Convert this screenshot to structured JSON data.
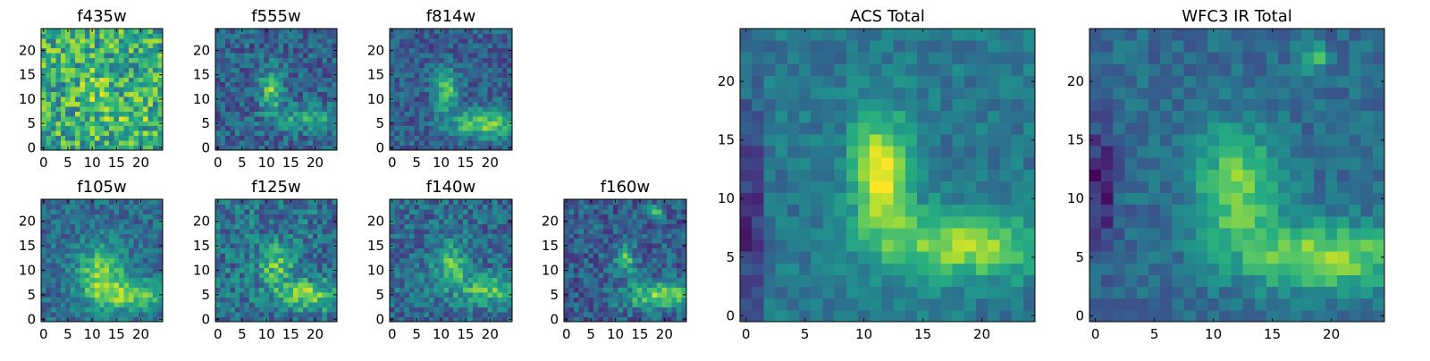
{
  "figure": {
    "description_colormap": "viridis",
    "colors": [
      "#440154",
      "#3b528b",
      "#21918c",
      "#5ec962",
      "#fde725"
    ]
  },
  "chart_data": [
    {
      "type": "heatmap",
      "title": "f435w",
      "grid": false,
      "xlim": [
        -0.5,
        24.5
      ],
      "ylim": [
        -0.5,
        24.5
      ],
      "xticks": [
        0,
        5,
        10,
        15,
        20
      ],
      "yticks": [
        0,
        5,
        10,
        15,
        20
      ],
      "nx": 25,
      "ny": 25,
      "noise": 0.55,
      "blobs": [
        {
          "x": 11,
          "y": 12,
          "sx": 2.5,
          "sy": 3.5,
          "amp": 0.12
        },
        {
          "x": 18,
          "y": 6,
          "sx": 5,
          "sy": 2,
          "amp": 0.08
        }
      ],
      "base": 0.62,
      "seed": 11
    },
    {
      "type": "heatmap",
      "title": "f555w",
      "grid": false,
      "xlim": [
        -0.5,
        24.5
      ],
      "ylim": [
        -0.5,
        24.5
      ],
      "xticks": [
        0,
        5,
        10,
        15,
        20
      ],
      "yticks": [
        0,
        5,
        10,
        15,
        20
      ],
      "nx": 25,
      "ny": 25,
      "noise": 0.35,
      "blobs": [
        {
          "x": 11,
          "y": 12,
          "sx": 1.6,
          "sy": 3.0,
          "amp": 0.45
        },
        {
          "x": 19,
          "y": 6,
          "sx": 5,
          "sy": 1.8,
          "amp": 0.3
        }
      ],
      "base": 0.32,
      "seed": 23
    },
    {
      "type": "heatmap",
      "title": "f814w",
      "grid": false,
      "xlim": [
        -0.5,
        24.5
      ],
      "ylim": [
        -0.5,
        24.5
      ],
      "xticks": [
        0,
        5,
        10,
        15,
        20
      ],
      "yticks": [
        0,
        5,
        10,
        15,
        20
      ],
      "nx": 25,
      "ny": 25,
      "noise": 0.3,
      "blobs": [
        {
          "x": 11,
          "y": 12,
          "sx": 1.7,
          "sy": 3.0,
          "amp": 0.45
        },
        {
          "x": 19,
          "y": 5,
          "sx": 5,
          "sy": 2,
          "amp": 0.5
        }
      ],
      "base": 0.3,
      "seed": 37
    },
    {
      "type": "heatmap",
      "title": "f105w",
      "grid": false,
      "xlim": [
        -0.5,
        24.5
      ],
      "ylim": [
        -0.5,
        24.5
      ],
      "xticks": [
        0,
        5,
        10,
        15,
        20
      ],
      "yticks": [
        0,
        5,
        10,
        15,
        20
      ],
      "nx": 25,
      "ny": 25,
      "noise": 0.3,
      "blobs": [
        {
          "x": 12,
          "y": 9,
          "sx": 3.5,
          "sy": 4.5,
          "amp": 0.45
        },
        {
          "x": 19,
          "y": 5,
          "sx": 5,
          "sy": 2,
          "amp": 0.4
        }
      ],
      "base": 0.35,
      "seed": 41
    },
    {
      "type": "heatmap",
      "title": "f125w",
      "grid": false,
      "xlim": [
        -0.5,
        24.5
      ],
      "ylim": [
        -0.5,
        24.5
      ],
      "xticks": [
        0,
        5,
        10,
        15,
        20
      ],
      "yticks": [
        0,
        5,
        10,
        15,
        20
      ],
      "nx": 25,
      "ny": 25,
      "noise": 0.4,
      "blobs": [
        {
          "x": 12,
          "y": 11,
          "sx": 2.5,
          "sy": 3,
          "amp": 0.35
        },
        {
          "x": 19,
          "y": 5,
          "sx": 5,
          "sy": 2,
          "amp": 0.4
        }
      ],
      "base": 0.38,
      "seed": 53
    },
    {
      "type": "heatmap",
      "title": "f140w",
      "grid": false,
      "xlim": [
        -0.5,
        24.5
      ],
      "ylim": [
        -0.5,
        24.5
      ],
      "xticks": [
        0,
        5,
        10,
        15,
        20
      ],
      "yticks": [
        0,
        5,
        10,
        15,
        20
      ],
      "nx": 25,
      "ny": 25,
      "noise": 0.35,
      "blobs": [
        {
          "x": 12,
          "y": 11,
          "sx": 2.5,
          "sy": 3.5,
          "amp": 0.35
        },
        {
          "x": 20,
          "y": 6,
          "sx": 4,
          "sy": 2,
          "amp": 0.4
        }
      ],
      "base": 0.35,
      "seed": 67
    },
    {
      "type": "heatmap",
      "title": "f160w",
      "grid": false,
      "xlim": [
        -0.5,
        24.5
      ],
      "ylim": [
        -0.5,
        24.5
      ],
      "xticks": [
        0,
        5,
        10,
        15,
        20
      ],
      "yticks": [
        0,
        5,
        10,
        15,
        20
      ],
      "nx": 25,
      "ny": 25,
      "noise": 0.35,
      "blobs": [
        {
          "x": 12,
          "y": 12,
          "sx": 1.5,
          "sy": 2.0,
          "amp": 0.4
        },
        {
          "x": 19,
          "y": 5,
          "sx": 5,
          "sy": 2,
          "amp": 0.5
        },
        {
          "x": 18,
          "y": 22,
          "sx": 0.8,
          "sy": 0.8,
          "amp": 0.5
        }
      ],
      "base": 0.3,
      "seed": 79
    },
    {
      "type": "heatmap",
      "title": "ACS Total",
      "grid": false,
      "xlim": [
        -0.5,
        24.5
      ],
      "ylim": [
        -0.5,
        24.5
      ],
      "xticks": [
        0,
        5,
        10,
        15,
        20
      ],
      "yticks": [
        0,
        5,
        10,
        15,
        20
      ],
      "nx": 25,
      "ny": 25,
      "noise": 0.2,
      "blobs": [
        {
          "x": 11.5,
          "y": 12,
          "sx": 1.8,
          "sy": 3.5,
          "amp": 0.6
        },
        {
          "x": 18.5,
          "y": 6,
          "sx": 5,
          "sy": 2,
          "amp": 0.45
        },
        {
          "x": 0.5,
          "y": 8,
          "sx": 0.6,
          "sy": 7,
          "amp": -0.35
        }
      ],
      "base": 0.4,
      "seed": 89
    },
    {
      "type": "heatmap",
      "title": "WFC3 IR Total",
      "grid": false,
      "xlim": [
        -0.5,
        24.5
      ],
      "ylim": [
        -0.5,
        24.5
      ],
      "xticks": [
        0,
        5,
        10,
        15,
        20
      ],
      "yticks": [
        0,
        5,
        10,
        15,
        20
      ],
      "nx": 25,
      "ny": 25,
      "noise": 0.2,
      "blobs": [
        {
          "x": 12,
          "y": 11,
          "sx": 2.5,
          "sy": 3.5,
          "amp": 0.45
        },
        {
          "x": 19.5,
          "y": 5,
          "sx": 5,
          "sy": 2,
          "amp": 0.5
        },
        {
          "x": 18.5,
          "y": 22,
          "sx": 0.8,
          "sy": 0.8,
          "amp": 0.4
        },
        {
          "x": 0.5,
          "y": 11,
          "sx": 0.8,
          "sy": 4,
          "amp": -0.3
        }
      ],
      "base": 0.35,
      "seed": 97
    }
  ]
}
